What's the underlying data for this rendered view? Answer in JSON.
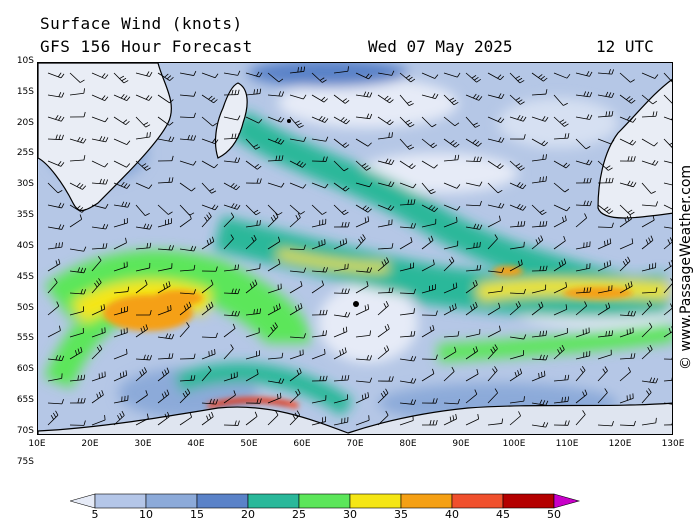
{
  "header": {
    "title": "Surface Wind (knots)",
    "subtitle": "GFS 156 Hour Forecast",
    "date": "Wed 07 May 2025",
    "time": "12 UTC"
  },
  "map": {
    "lat_labels": [
      "10S",
      "15S",
      "20S",
      "25S",
      "30S",
      "35S",
      "40S",
      "45S",
      "50S",
      "55S",
      "60S",
      "65S",
      "70S",
      "75S"
    ],
    "lon_labels": [
      "10E",
      "20E",
      "30E",
      "40E",
      "50E",
      "60E",
      "70E",
      "80E",
      "90E",
      "100E",
      "110E",
      "120E",
      "130E"
    ],
    "copyright": "© www.PassageWeather.com"
  },
  "legend": {
    "labels": [
      "5",
      "10",
      "15",
      "20",
      "25",
      "30",
      "35",
      "40",
      "45",
      "50"
    ],
    "colors": [
      "#e6ebf7",
      "#b4c6e8",
      "#8caad9",
      "#5a82c8",
      "#2ab89a",
      "#5ce65a",
      "#f5e614",
      "#f5a014",
      "#f0502d",
      "#b40000",
      "#c800c8"
    ]
  }
}
